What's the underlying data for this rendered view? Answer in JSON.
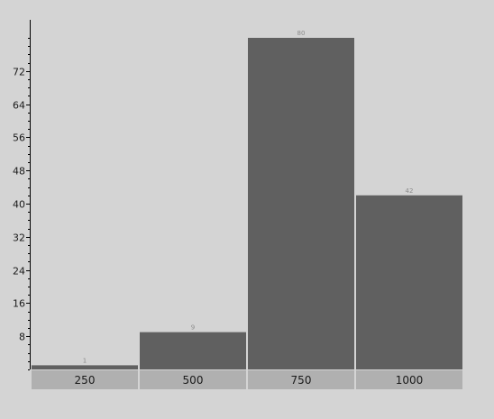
{
  "chart_data": {
    "type": "bar",
    "categories": [
      "250",
      "500",
      "750",
      "1000"
    ],
    "values": [
      1,
      9,
      80,
      42
    ],
    "data_labels": [
      "1",
      "9",
      "80",
      "42"
    ],
    "y_ticks": [
      8,
      16,
      24,
      32,
      40,
      48,
      56,
      64,
      72
    ],
    "ylim": [
      0,
      80
    ],
    "title": "",
    "xlabel": "",
    "ylabel": "",
    "grid": false,
    "colors": {
      "background": "#d4d4d4",
      "bar": "#606060",
      "axis": "#000000",
      "category_band": "#b0b0b0",
      "category_text": "#1a1a1a",
      "data_label": "#8c8c8c"
    }
  }
}
